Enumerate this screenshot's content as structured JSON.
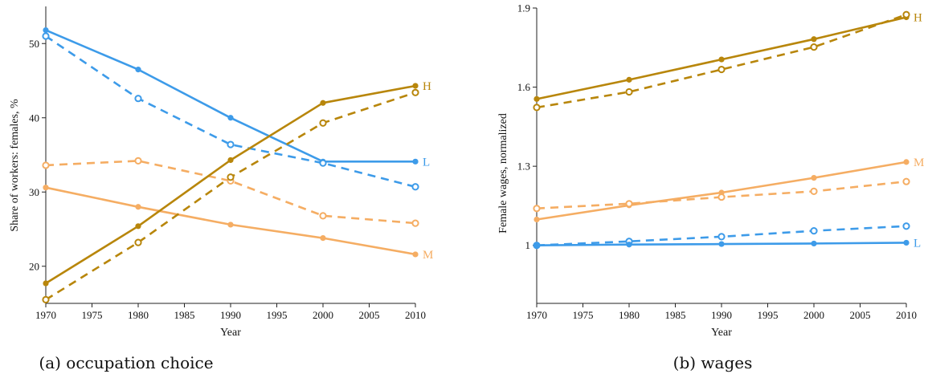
{
  "colors": {
    "H": "#b8860b",
    "M": "#f5ad63",
    "L": "#3d9be9"
  },
  "chart_data": [
    {
      "type": "line",
      "caption": "(a) occupation choice",
      "xlabel": "Year",
      "ylabel": "Share of workers: females, %",
      "xlim": [
        1970,
        2010
      ],
      "ylim": [
        15,
        55
      ],
      "xticks": [
        1970,
        1975,
        1980,
        1985,
        1990,
        1995,
        2000,
        2005,
        2010
      ],
      "yticks": [
        20,
        30,
        40,
        50
      ],
      "x": [
        1970,
        1980,
        1990,
        2000,
        2010
      ],
      "series": [
        {
          "group": "L",
          "style": "solid",
          "values": [
            51.8,
            46.5,
            40.0,
            34.1,
            34.1
          ]
        },
        {
          "group": "L",
          "style": "dashed",
          "values": [
            51.0,
            42.6,
            36.4,
            33.9,
            30.7
          ]
        },
        {
          "group": "M",
          "style": "dashed",
          "values": [
            33.6,
            34.2,
            31.5,
            26.8,
            25.8
          ]
        },
        {
          "group": "M",
          "style": "solid",
          "values": [
            30.6,
            28.0,
            25.6,
            23.8,
            21.6
          ]
        },
        {
          "group": "H",
          "style": "solid",
          "values": [
            17.7,
            25.4,
            34.3,
            42.0,
            44.3
          ]
        },
        {
          "group": "H",
          "style": "dashed",
          "values": [
            15.5,
            23.2,
            32.0,
            39.3,
            43.4
          ]
        }
      ],
      "end_labels": [
        {
          "text": "H",
          "group": "H",
          "value": 44.3
        },
        {
          "text": "L",
          "group": "L",
          "value": 34.1
        },
        {
          "text": "M",
          "group": "M",
          "value": 21.6
        }
      ]
    },
    {
      "type": "line",
      "caption": "(b) wages",
      "xlabel": "Year",
      "ylabel": "Female wages, normalized",
      "xlim": [
        1970,
        2010
      ],
      "ylim": [
        0.78,
        1.9
      ],
      "xticks": [
        1970,
        1975,
        1980,
        1985,
        1990,
        1995,
        2000,
        2005,
        2010
      ],
      "yticks": [
        1,
        1.3,
        1.6,
        1.9
      ],
      "x": [
        1970,
        1980,
        1990,
        2000,
        2010
      ],
      "series": [
        {
          "group": "H",
          "style": "solid",
          "values": [
            1.555,
            1.628,
            1.705,
            1.782,
            1.865
          ]
        },
        {
          "group": "H",
          "style": "dashed",
          "values": [
            1.523,
            1.582,
            1.667,
            1.752,
            1.875
          ]
        },
        {
          "group": "M",
          "style": "solid",
          "values": [
            1.098,
            1.152,
            1.2,
            1.256,
            1.316
          ]
        },
        {
          "group": "M",
          "style": "dashed",
          "values": [
            1.14,
            1.158,
            1.183,
            1.205,
            1.242
          ]
        },
        {
          "group": "L",
          "style": "dashed",
          "values": [
            1.0,
            1.015,
            1.033,
            1.055,
            1.073
          ]
        },
        {
          "group": "L",
          "style": "solid",
          "values": [
            1.0,
            1.003,
            1.005,
            1.007,
            1.01
          ]
        }
      ],
      "end_labels": [
        {
          "text": "H",
          "group": "H",
          "value": 1.865
        },
        {
          "text": "M",
          "group": "M",
          "value": 1.316
        },
        {
          "text": "L",
          "group": "L",
          "value": 1.01
        }
      ]
    }
  ]
}
